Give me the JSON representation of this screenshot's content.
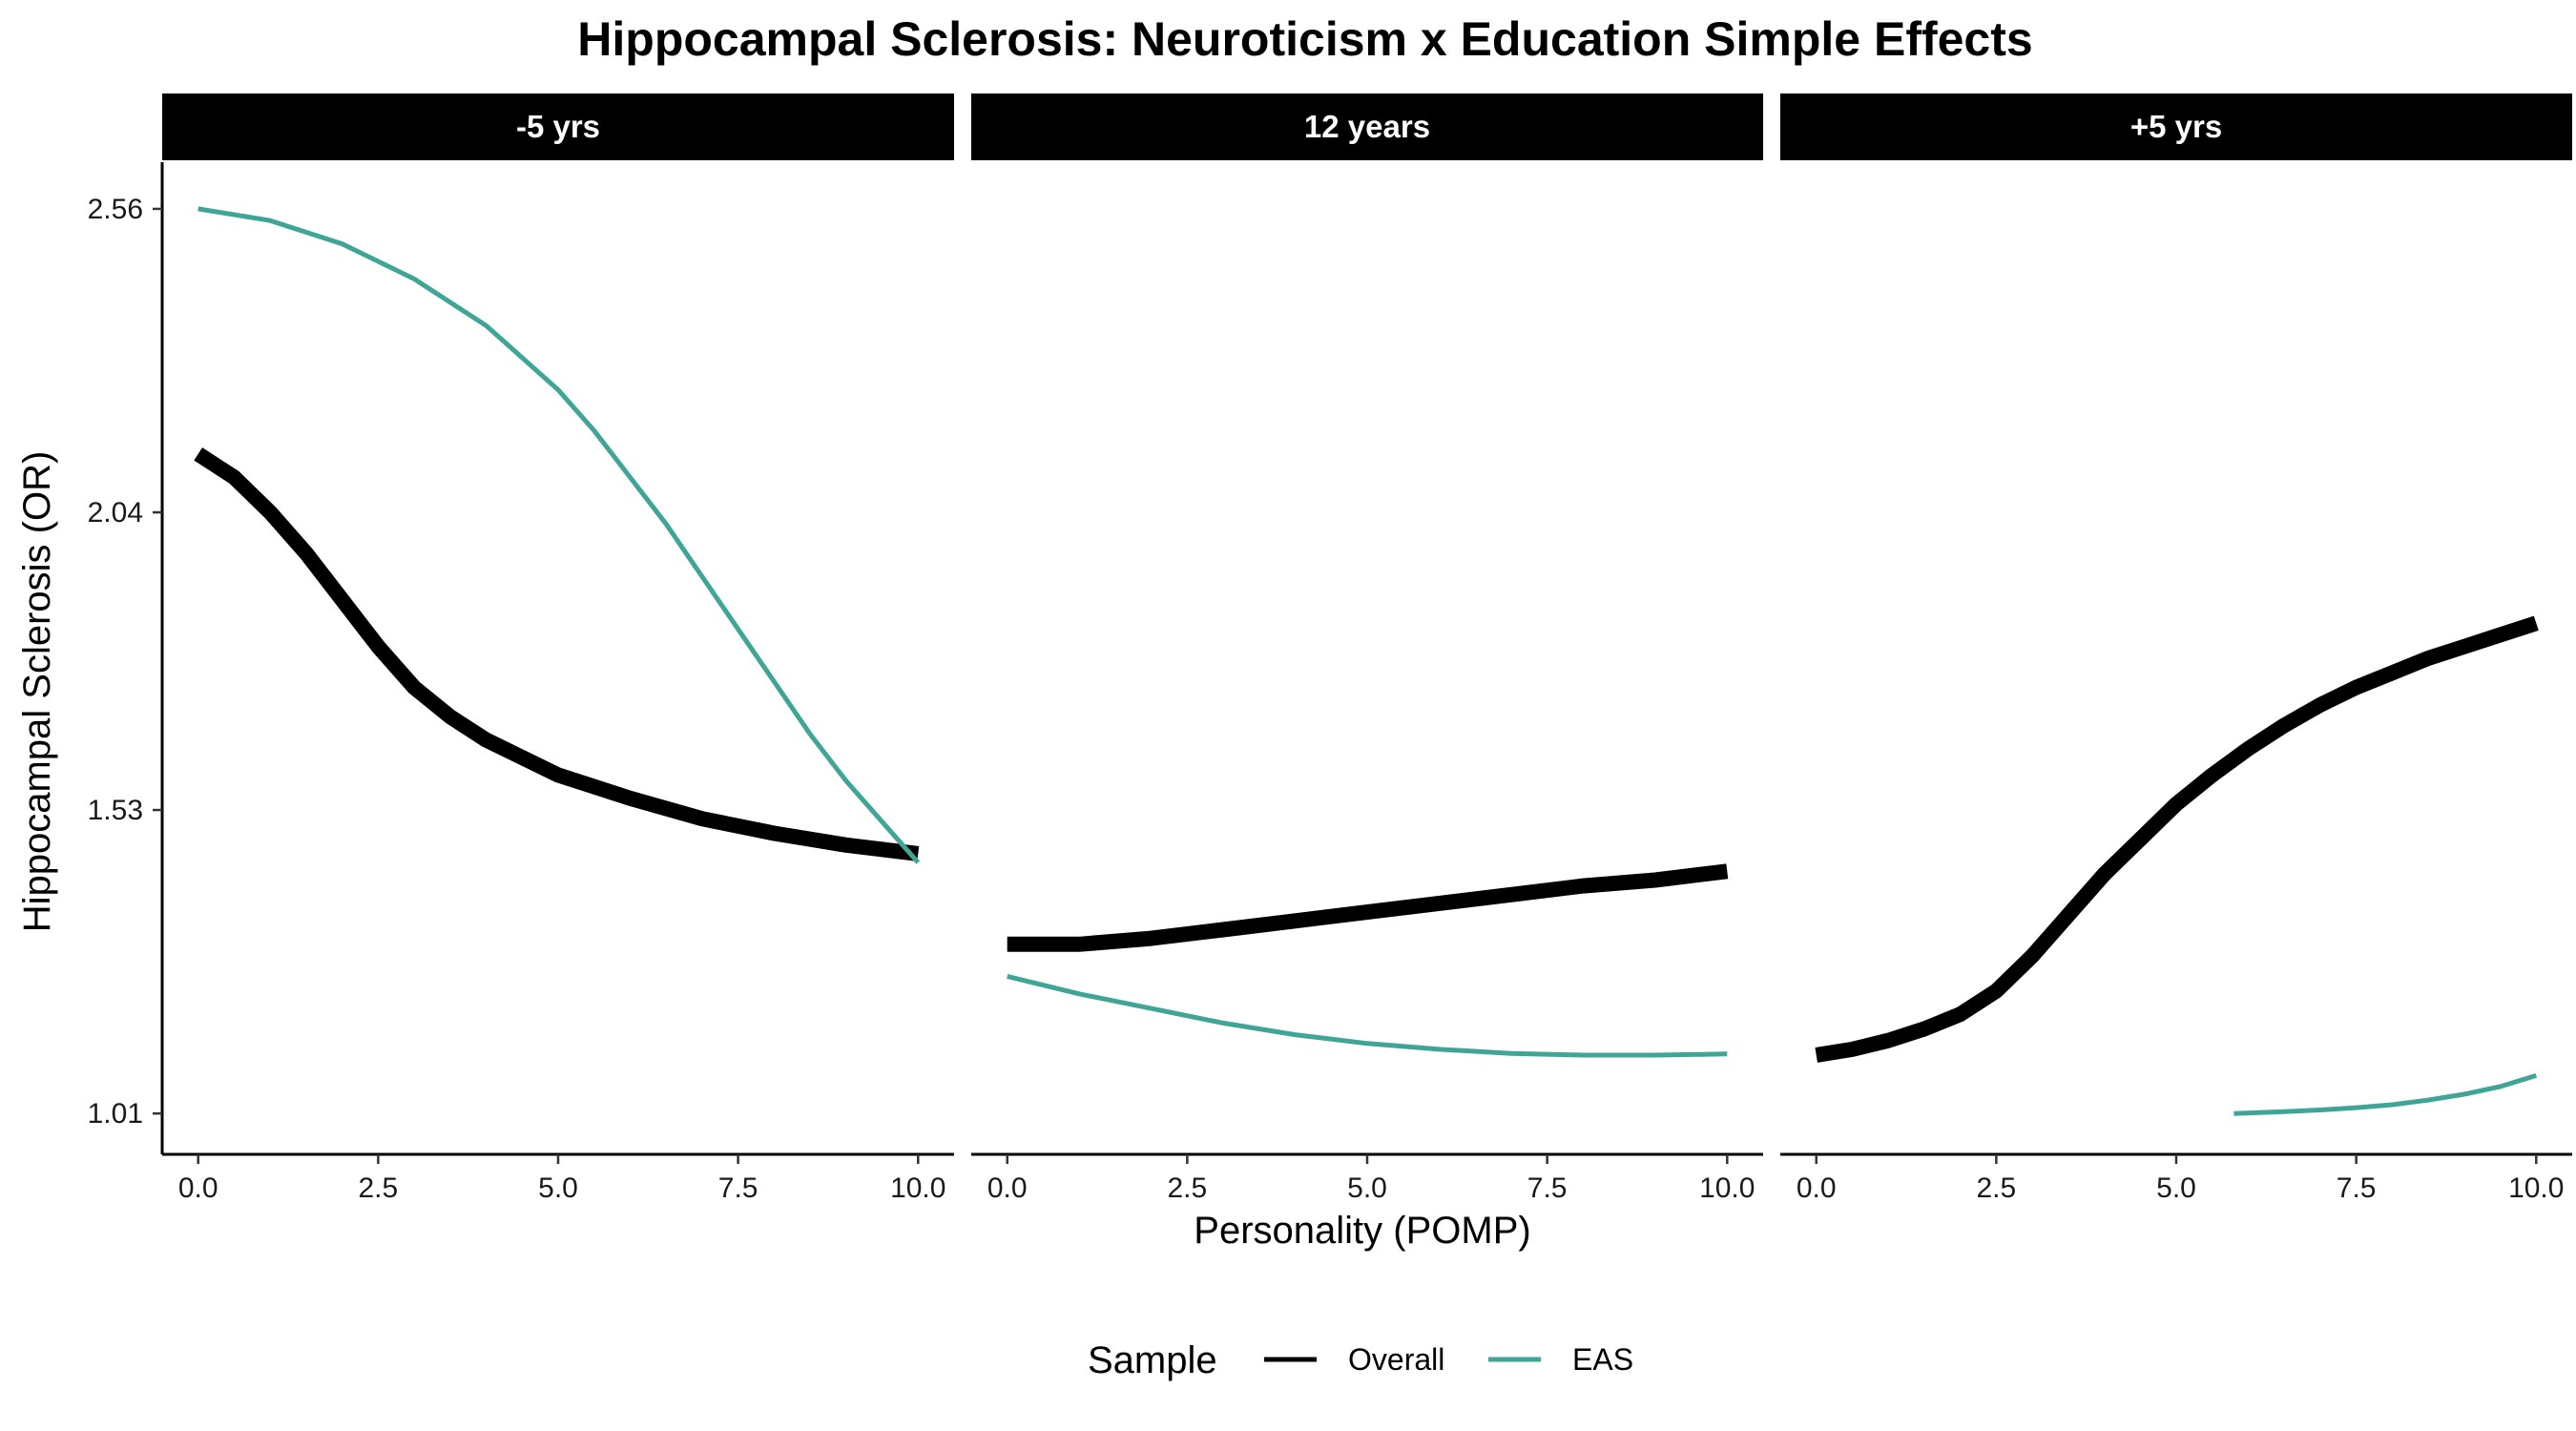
{
  "chart_data": {
    "type": "line",
    "title": "Hippocampal Sclerosis: Neuroticism x Education Simple Effects",
    "xlabel": "Personality (POMP)",
    "ylabel": "Hippocampal Sclerosis (OR)",
    "xlim": [
      -0.5,
      10.5
    ],
    "ylim": [
      0.94,
      2.64
    ],
    "x_ticks": [
      0,
      2.5,
      5,
      7.5,
      10
    ],
    "x_tick_labels": [
      "0.0",
      "2.5",
      "5.0",
      "7.5",
      "10.0"
    ],
    "y_ticks": [
      1.01,
      1.53,
      2.04,
      2.56
    ],
    "y_tick_labels": [
      "1.01",
      "1.53",
      "2.04",
      "2.56"
    ],
    "grid": false,
    "legend": {
      "title": "Sample",
      "position": "bottom",
      "entries": [
        {
          "label": "Overall",
          "color": "#000000"
        },
        {
          "label": "EAS",
          "color": "#3FA596"
        }
      ]
    },
    "facets": [
      {
        "label": "-5 yrs",
        "series": [
          {
            "name": "Overall",
            "color": "#000000",
            "width": "thick",
            "x": [
              0,
              0.5,
              1,
              1.5,
              2,
              2.5,
              3,
              3.5,
              4,
              5,
              6,
              7,
              8,
              9,
              10
            ],
            "y": [
              2.14,
              2.1,
              2.04,
              1.97,
              1.89,
              1.81,
              1.74,
              1.69,
              1.65,
              1.59,
              1.55,
              1.515,
              1.49,
              1.47,
              1.455
            ]
          },
          {
            "name": "EAS",
            "color": "#3FA596",
            "width": "thin",
            "x": [
              0,
              1,
              2,
              3,
              4,
              5,
              5.5,
              6,
              6.5,
              7,
              7.5,
              8,
              8.5,
              9,
              9.5,
              10
            ],
            "y": [
              2.56,
              2.54,
              2.5,
              2.44,
              2.36,
              2.25,
              2.18,
              2.1,
              2.02,
              1.93,
              1.84,
              1.75,
              1.66,
              1.58,
              1.51,
              1.44
            ]
          }
        ]
      },
      {
        "label": "12 years",
        "series": [
          {
            "name": "Overall",
            "color": "#000000",
            "width": "thick",
            "x": [
              0,
              1,
              2,
              3,
              4,
              5,
              6,
              7,
              8,
              9,
              10
            ],
            "y": [
              1.3,
              1.3,
              1.31,
              1.325,
              1.34,
              1.355,
              1.37,
              1.385,
              1.4,
              1.41,
              1.425
            ]
          },
          {
            "name": "EAS",
            "color": "#3FA596",
            "width": "thin",
            "x": [
              0,
              1,
              2,
              3,
              4,
              5,
              6,
              7,
              8,
              9,
              10
            ],
            "y": [
              1.245,
              1.215,
              1.19,
              1.165,
              1.145,
              1.13,
              1.12,
              1.113,
              1.11,
              1.11,
              1.112
            ]
          }
        ]
      },
      {
        "label": "+5 yrs",
        "series": [
          {
            "name": "Overall",
            "color": "#000000",
            "width": "thick",
            "x": [
              0,
              0.5,
              1,
              1.5,
              2,
              2.5,
              3,
              3.5,
              4,
              4.5,
              5,
              5.5,
              6,
              6.5,
              7,
              7.5,
              8,
              8.5,
              9,
              9.5,
              10
            ],
            "y": [
              1.11,
              1.12,
              1.135,
              1.155,
              1.18,
              1.22,
              1.28,
              1.35,
              1.42,
              1.48,
              1.54,
              1.59,
              1.635,
              1.675,
              1.71,
              1.74,
              1.765,
              1.79,
              1.81,
              1.83,
              1.85
            ]
          },
          {
            "name": "EAS",
            "color": "#3FA596",
            "width": "thin",
            "x": [
              5.8,
              6.5,
              7,
              7.5,
              8,
              8.5,
              9,
              9.5,
              10
            ],
            "y": [
              1.01,
              1.013,
              1.016,
              1.02,
              1.025,
              1.033,
              1.043,
              1.056,
              1.075
            ]
          }
        ]
      }
    ]
  }
}
